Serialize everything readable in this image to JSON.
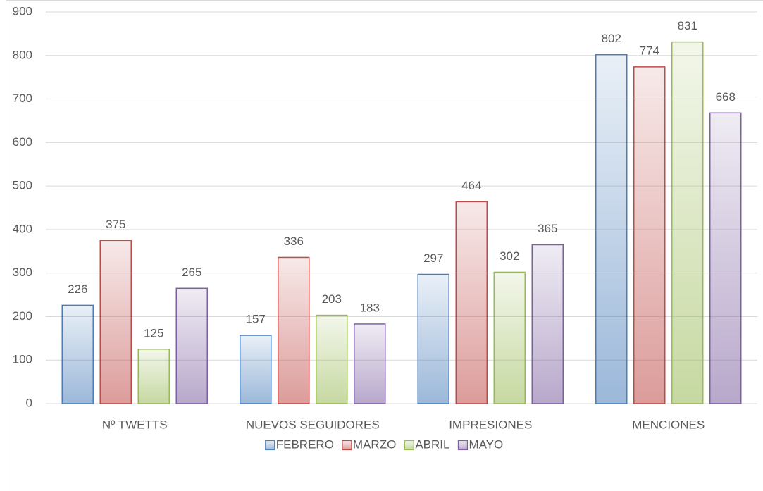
{
  "chart_data": {
    "type": "bar",
    "categories": [
      "Nº TWETTS",
      "NUEVOS SEGUIDORES",
      "IMPRESIONES",
      "MENCIONES"
    ],
    "series": [
      {
        "name": "FEBRERO",
        "color": "#4a7ebb",
        "values": [
          226,
          157,
          297,
          802
        ]
      },
      {
        "name": "MARZO",
        "color": "#be4b48",
        "values": [
          375,
          336,
          464,
          774
        ]
      },
      {
        "name": "ABRIL",
        "color": "#98b954",
        "values": [
          125,
          203,
          302,
          831
        ]
      },
      {
        "name": "MAYO",
        "color": "#7d60a0",
        "values": [
          265,
          183,
          365,
          668
        ]
      }
    ],
    "ylim": [
      0,
      900
    ],
    "yticks": [
      0,
      100,
      200,
      300,
      400,
      500,
      600,
      700,
      800,
      900
    ],
    "grid": true,
    "legend": "bottom"
  }
}
